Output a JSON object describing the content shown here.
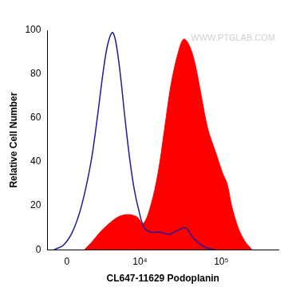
{
  "chart_data": {
    "type": "line",
    "x_label": "CL647-11629 Podoplanin",
    "y_label": "Relative Cell Number",
    "annotations": [
      "WWW.PTGLAB.COM"
    ],
    "xlim": [
      -1500,
      500000
    ],
    "xticks": [
      0,
      {
        "value": 10000,
        "label": "10⁴"
      },
      {
        "value": 100000,
        "label": "10⁵"
      }
    ],
    "ylim": [
      0,
      100
    ],
    "yticks": [
      0,
      20,
      40,
      60,
      80,
      100
    ],
    "grid": false,
    "series": [
      {
        "type": "line",
        "color": "#1c1c9c",
        "line_style": "solid",
        "x": [
          -960,
          -270,
          400,
          1100,
          1900,
          2500,
          3100,
          3650,
          4300,
          4800,
          5550,
          6400,
          7350,
          8400,
          9650,
          11300,
          13600,
          17700,
          23000,
          29800,
          36700,
          44000,
          52800,
          65000,
          84200
        ],
        "values": [
          0,
          2,
          8,
          20,
          40,
          60,
          80,
          93,
          99,
          95,
          80,
          60,
          42,
          28,
          18,
          10,
          8,
          8,
          7,
          9,
          10,
          6,
          3,
          1,
          0
        ]
      },
      {
        "type": "area",
        "color": "#ff0000",
        "line_style": "solid",
        "x": [
          1330,
          1900,
          2800,
          3900,
          5250,
          6950,
          9100,
          11000,
          13600,
          16800,
          20200,
          24200,
          29800,
          34800,
          40700,
          47600,
          57000,
          68500,
          84200,
          103500,
          118000,
          134000,
          161000,
          193000,
          237000
        ],
        "values": [
          0,
          3,
          8,
          12,
          15,
          16,
          15,
          12,
          20,
          35,
          55,
          75,
          90,
          96,
          93,
          85,
          70,
          55,
          45,
          35,
          30,
          20,
          10,
          4,
          0
        ]
      }
    ]
  }
}
